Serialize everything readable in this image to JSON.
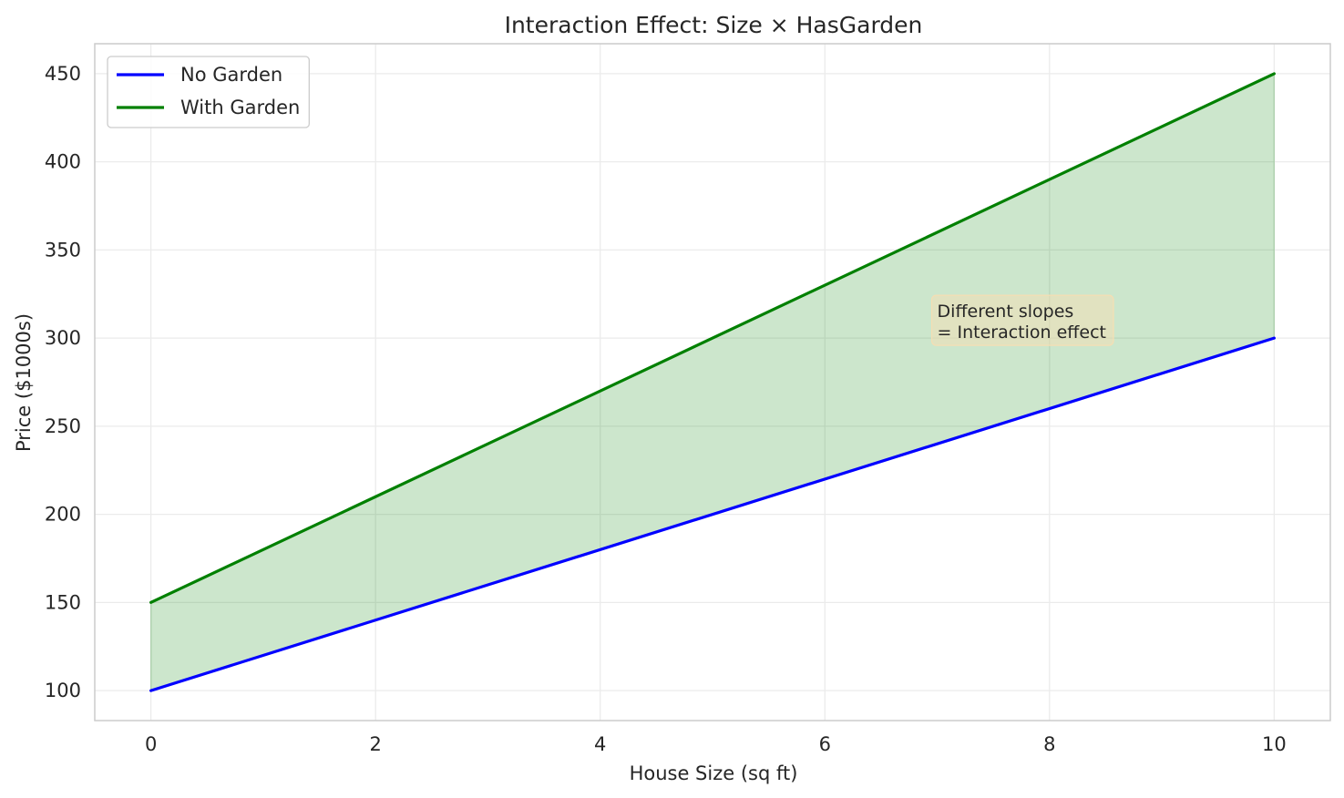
{
  "chart_data": {
    "type": "line",
    "title": "Interaction Effect: Size × HasGarden",
    "xlabel": "House Size (sq ft)",
    "ylabel": "Price ($1000s)",
    "xlim": [
      -0.5,
      10.5
    ],
    "ylim": [
      83,
      467
    ],
    "xticks": [
      0,
      2,
      4,
      6,
      8,
      10
    ],
    "yticks": [
      100,
      150,
      200,
      250,
      300,
      350,
      400,
      450
    ],
    "grid": true,
    "legend_position": "top-left",
    "x": [
      0,
      10
    ],
    "series": [
      {
        "name": "No Garden",
        "color": "#0000ff",
        "values": [
          100,
          300
        ]
      },
      {
        "name": "With Garden",
        "color": "#008000",
        "values": [
          150,
          450
        ]
      }
    ],
    "fill_between": {
      "lower": "No Garden",
      "upper": "With Garden",
      "color": "#008000",
      "alpha": 0.2
    },
    "annotation": {
      "lines": [
        "Different slopes",
        "= Interaction effect"
      ],
      "x": 7,
      "y": 300,
      "background": "#f5deb3"
    }
  }
}
